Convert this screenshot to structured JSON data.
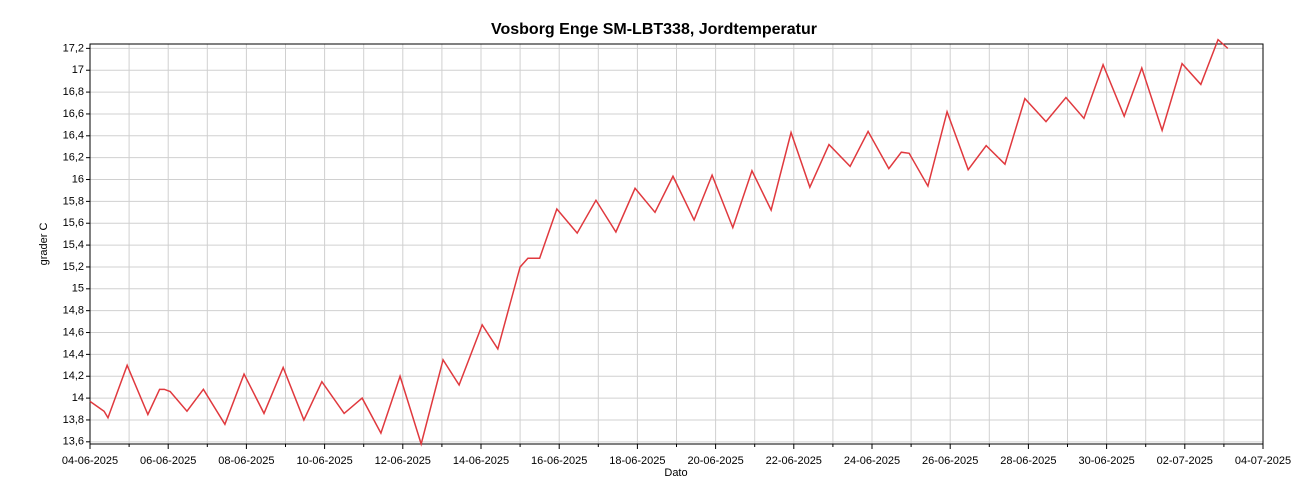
{
  "chart_data": {
    "type": "line",
    "title": "Vosborg Enge SM-LBT338, Jordtemperatur",
    "x_label": "Dato",
    "y_label": "grader C",
    "x": [
      0,
      0.36,
      0.46,
      0.95,
      1.48,
      1.78,
      1.9,
      2.05,
      2.48,
      2.9,
      3.45,
      3.94,
      4.45,
      4.94,
      5.47,
      5.93,
      6.5,
      6.96,
      7.44,
      7.93,
      8.47,
      9.03,
      9.44,
      10.03,
      10.43,
      11.0,
      11.2,
      11.5,
      11.94,
      12.46,
      12.94,
      13.45,
      13.94,
      14.45,
      14.91,
      15.45,
      15.91,
      16.44,
      16.93,
      17.42,
      17.93,
      18.41,
      18.9,
      19.44,
      19.9,
      20.43,
      20.75,
      20.95,
      21.43,
      21.92,
      22.46,
      22.92,
      23.4,
      23.91,
      24.45,
      24.96,
      25.42,
      25.91,
      26.45,
      26.9,
      27.42,
      27.93,
      28.41,
      28.85,
      29.1
    ],
    "series": [
      {
        "name": "Jordtemperatur",
        "color": "#e0393e",
        "values": [
          13.97,
          13.88,
          13.82,
          14.3,
          13.85,
          14.08,
          14.08,
          14.06,
          13.88,
          14.08,
          13.76,
          14.22,
          13.86,
          14.28,
          13.8,
          14.15,
          13.86,
          14.0,
          13.68,
          14.2,
          13.58,
          14.35,
          14.12,
          14.67,
          14.45,
          15.2,
          15.28,
          15.28,
          15.73,
          15.51,
          15.81,
          15.52,
          15.92,
          15.7,
          16.03,
          15.63,
          16.04,
          15.56,
          16.08,
          15.72,
          16.43,
          15.93,
          16.32,
          16.12,
          16.44,
          16.1,
          16.25,
          16.24,
          15.94,
          16.62,
          16.09,
          16.31,
          16.14,
          16.74,
          16.53,
          16.75,
          16.56,
          17.05,
          16.58,
          17.02,
          16.45,
          17.06,
          16.87,
          17.28,
          17.2
        ]
      }
    ],
    "xlim": [
      0,
      30
    ],
    "xticks": [
      {
        "value": 0,
        "label": "04-06-2025"
      },
      {
        "value": 2,
        "label": "06-06-2025"
      },
      {
        "value": 4,
        "label": "08-06-2025"
      },
      {
        "value": 6,
        "label": "10-06-2025"
      },
      {
        "value": 8,
        "label": "12-06-2025"
      },
      {
        "value": 10,
        "label": "14-06-2025"
      },
      {
        "value": 12,
        "label": "16-06-2025"
      },
      {
        "value": 14,
        "label": "18-06-2025"
      },
      {
        "value": 16,
        "label": "20-06-2025"
      },
      {
        "value": 18,
        "label": "22-06-2025"
      },
      {
        "value": 20,
        "label": "24-06-2025"
      },
      {
        "value": 22,
        "label": "26-06-2025"
      },
      {
        "value": 24,
        "label": "28-06-2025"
      },
      {
        "value": 26,
        "label": "30-06-2025"
      },
      {
        "value": 28,
        "label": "02-07-2025"
      },
      {
        "value": 30,
        "label": "04-07-2025"
      }
    ],
    "xminorticks": [
      1,
      3,
      5,
      7,
      9,
      11,
      13,
      15,
      17,
      19,
      21,
      23,
      25,
      27,
      29
    ],
    "ylim": [
      13.58,
      17.24
    ],
    "yticks": [
      {
        "value": 13.6,
        "label": "13,6"
      },
      {
        "value": 13.8,
        "label": "13,8"
      },
      14,
      {
        "value": 14.2,
        "label": "14,2"
      },
      {
        "value": 14.4,
        "label": "14,4"
      },
      {
        "value": 14.6,
        "label": "14,6"
      },
      {
        "value": 14.8,
        "label": "14,8"
      },
      15,
      {
        "value": 15.2,
        "label": "15,2"
      },
      {
        "value": 15.4,
        "label": "15,4"
      },
      {
        "value": 15.6,
        "label": "15,6"
      },
      {
        "value": 15.8,
        "label": "15,8"
      },
      16,
      {
        "value": 16.2,
        "label": "16,2"
      },
      {
        "value": 16.4,
        "label": "16,4"
      },
      {
        "value": 16.6,
        "label": "16,6"
      },
      {
        "value": 16.8,
        "label": "16,8"
      },
      17,
      {
        "value": 17.2,
        "label": "17,2"
      }
    ],
    "grid": true
  }
}
